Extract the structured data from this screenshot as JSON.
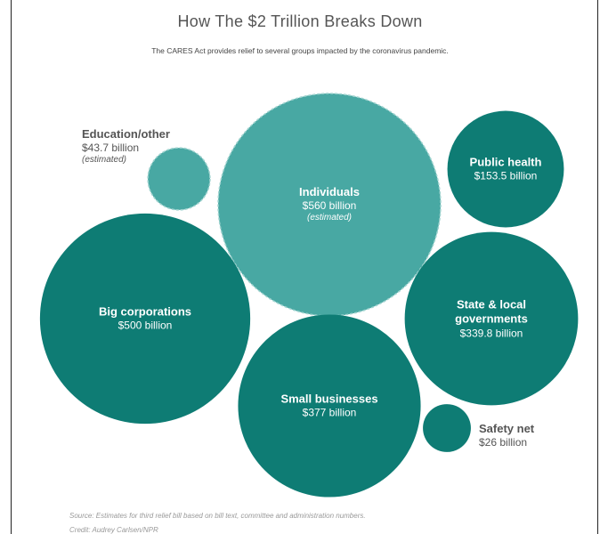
{
  "title": "How The $2 Trillion Breaks Down",
  "subtitle": "The CARES Act provides relief to several groups impacted by the coronavirus pandemic.",
  "source": "Source: Estimates for third relief bill based on bill text, committee and administration numbers.",
  "credit": "Credit: Audrey Carlsen/NPR",
  "colors": {
    "dark_teal": "#0e7c74",
    "light_teal": "#48a8a3",
    "dashed_stroke": "#9fd3cf"
  },
  "chart_data": {
    "type": "bubble",
    "title": "How The $2 Trillion Breaks Down",
    "subtitle": "The CARES Act provides relief to several groups impacted by the coronavirus pandemic.",
    "unit": "billion",
    "items": [
      {
        "name": "Individuals",
        "value": 560,
        "value_label": "$560 billion",
        "note": "(estimated)",
        "estimated": true
      },
      {
        "name": "Big corporations",
        "value": 500,
        "value_label": "$500 billion",
        "note": "",
        "estimated": false
      },
      {
        "name": "Small businesses",
        "value": 377,
        "value_label": "$377 billion",
        "note": "",
        "estimated": false
      },
      {
        "name": "State & local governments",
        "value": 339.8,
        "value_label": "$339.8 billion",
        "note": "",
        "estimated": false
      },
      {
        "name": "Public health",
        "value": 153.5,
        "value_label": "$153.5 billion",
        "note": "",
        "estimated": false
      },
      {
        "name": "Education/other",
        "value": 43.7,
        "value_label": "$43.7 billion",
        "note": "(estimated)",
        "estimated": true
      },
      {
        "name": "Safety net",
        "value": 26,
        "value_label": "$26 billion",
        "note": "",
        "estimated": false
      }
    ]
  }
}
